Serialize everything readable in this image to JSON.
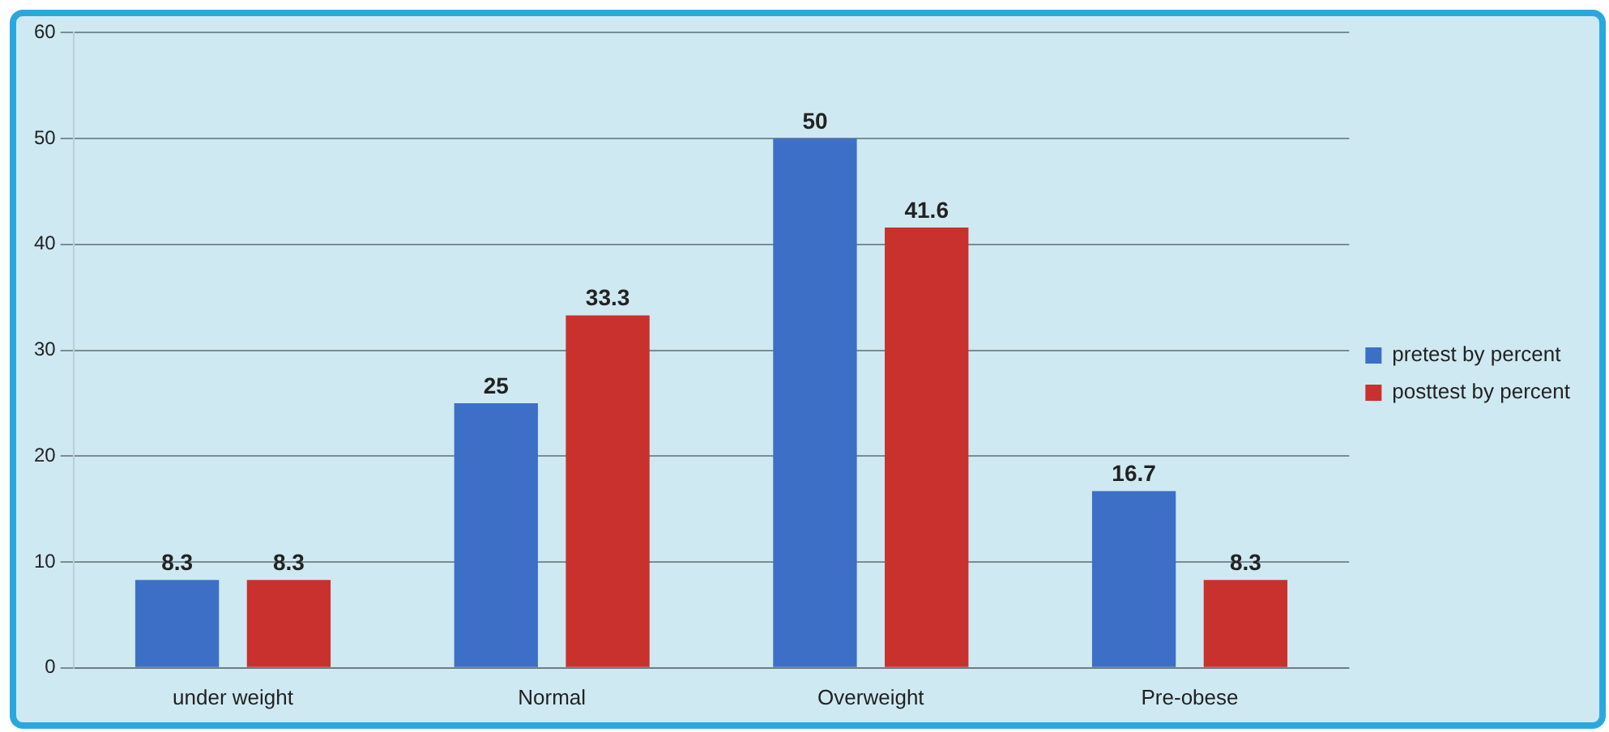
{
  "chart_data": {
    "type": "bar",
    "categories": [
      "under weight",
      "Normal",
      "Overweight",
      "Pre-obese"
    ],
    "series": [
      {
        "name": "pretest by percent",
        "color": "#3d6fc6",
        "values": [
          8.3,
          25,
          50,
          16.7
        ]
      },
      {
        "name": "posttest by percent",
        "color": "#c8312e",
        "values": [
          8.3,
          33.3,
          41.6,
          8.3
        ]
      }
    ],
    "ylim": [
      0,
      60
    ],
    "yticks": [
      0,
      10,
      20,
      30,
      40,
      50,
      60
    ],
    "grid": "y",
    "legend": "right",
    "data_labels": true
  }
}
